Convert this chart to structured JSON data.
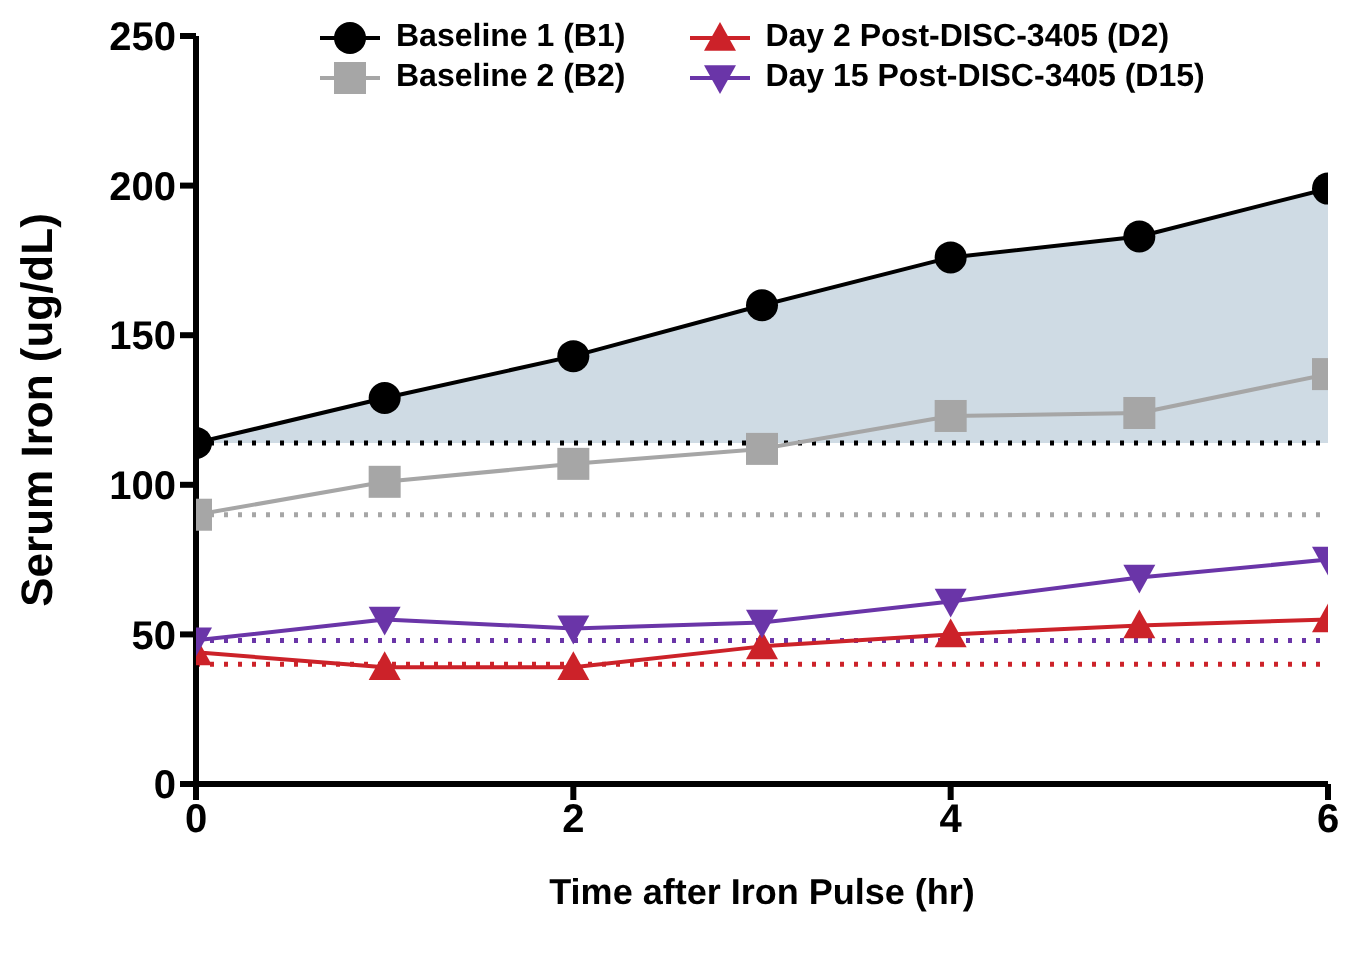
{
  "chart_data": {
    "type": "line",
    "xlabel": "Time after Iron Pulse (hr)",
    "ylabel": "Serum Iron (ug/dL)",
    "x": [
      0,
      1,
      2,
      3,
      4,
      5,
      6
    ],
    "xlim": [
      0,
      6
    ],
    "xticks": [
      0,
      2,
      4,
      6
    ],
    "ylim": [
      0,
      250
    ],
    "yticks": [
      0,
      50,
      100,
      150,
      200,
      250
    ],
    "grid": false,
    "legend": "top",
    "line_style": "solid",
    "series": [
      {
        "name": "Baseline 1 (B1)",
        "color": "#000000",
        "marker": "circle",
        "values": [
          114,
          129,
          143,
          160,
          176,
          183,
          199
        ],
        "lower": [
          114,
          114,
          114,
          114,
          114,
          114,
          114
        ],
        "upper": [
          114,
          129,
          143,
          160,
          176,
          183,
          199
        ]
      },
      {
        "name": "Baseline 2 (B2)",
        "color": "#a6a6a6",
        "marker": "square",
        "values": [
          90,
          101,
          107,
          112,
          123,
          124,
          137
        ]
      },
      {
        "name": "Day 2 Post-DISC-3405 (D2)",
        "color": "#cc2229",
        "marker": "triangle",
        "values": [
          44,
          39,
          39,
          46,
          50,
          53,
          55
        ]
      },
      {
        "name": "Day 15 Post-DISC-3405 (D15)",
        "color": "#6a35a8",
        "marker": "triangle-down",
        "values": [
          48,
          55,
          52,
          54,
          61,
          69,
          75
        ]
      }
    ],
    "ref_lines": [
      {
        "axis": "y",
        "value": 114,
        "color": "#000000",
        "line_style": "dotted"
      },
      {
        "axis": "y",
        "value": 90,
        "color": "#a6a6a6",
        "line_style": "dotted"
      },
      {
        "axis": "y",
        "value": 40,
        "color": "#cc2229",
        "line_style": "dotted"
      },
      {
        "axis": "y",
        "value": 48,
        "color": "#6a35a8",
        "line_style": "dotted"
      }
    ]
  }
}
